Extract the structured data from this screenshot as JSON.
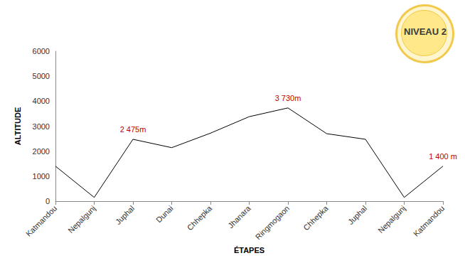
{
  "chart_data": {
    "type": "line",
    "x_label": "ÉTAPES",
    "y_label": "ALTITUDE",
    "categories": [
      "Katmandou",
      "Nepalgunj",
      "Juphal",
      "Dunai",
      "Chhepka",
      "Jhanara",
      "Ringmogaon",
      "Chhepka",
      "Juphal",
      "Nepalgunj",
      "Katmandou"
    ],
    "values": [
      1400,
      150,
      2475,
      2140,
      2720,
      3380,
      3730,
      2700,
      2475,
      150,
      1400
    ],
    "value_labels": [
      null,
      null,
      "2 475m",
      null,
      null,
      null,
      "3 730m",
      null,
      null,
      null,
      "1 400 m"
    ],
    "color": "#000000",
    "ylim": [
      0,
      6000
    ],
    "yticks": [
      0,
      1000,
      2000,
      3000,
      4000,
      5000,
      6000
    ],
    "grid": false,
    "annotations": [
      {
        "text": "NIVEAU 2"
      }
    ]
  }
}
